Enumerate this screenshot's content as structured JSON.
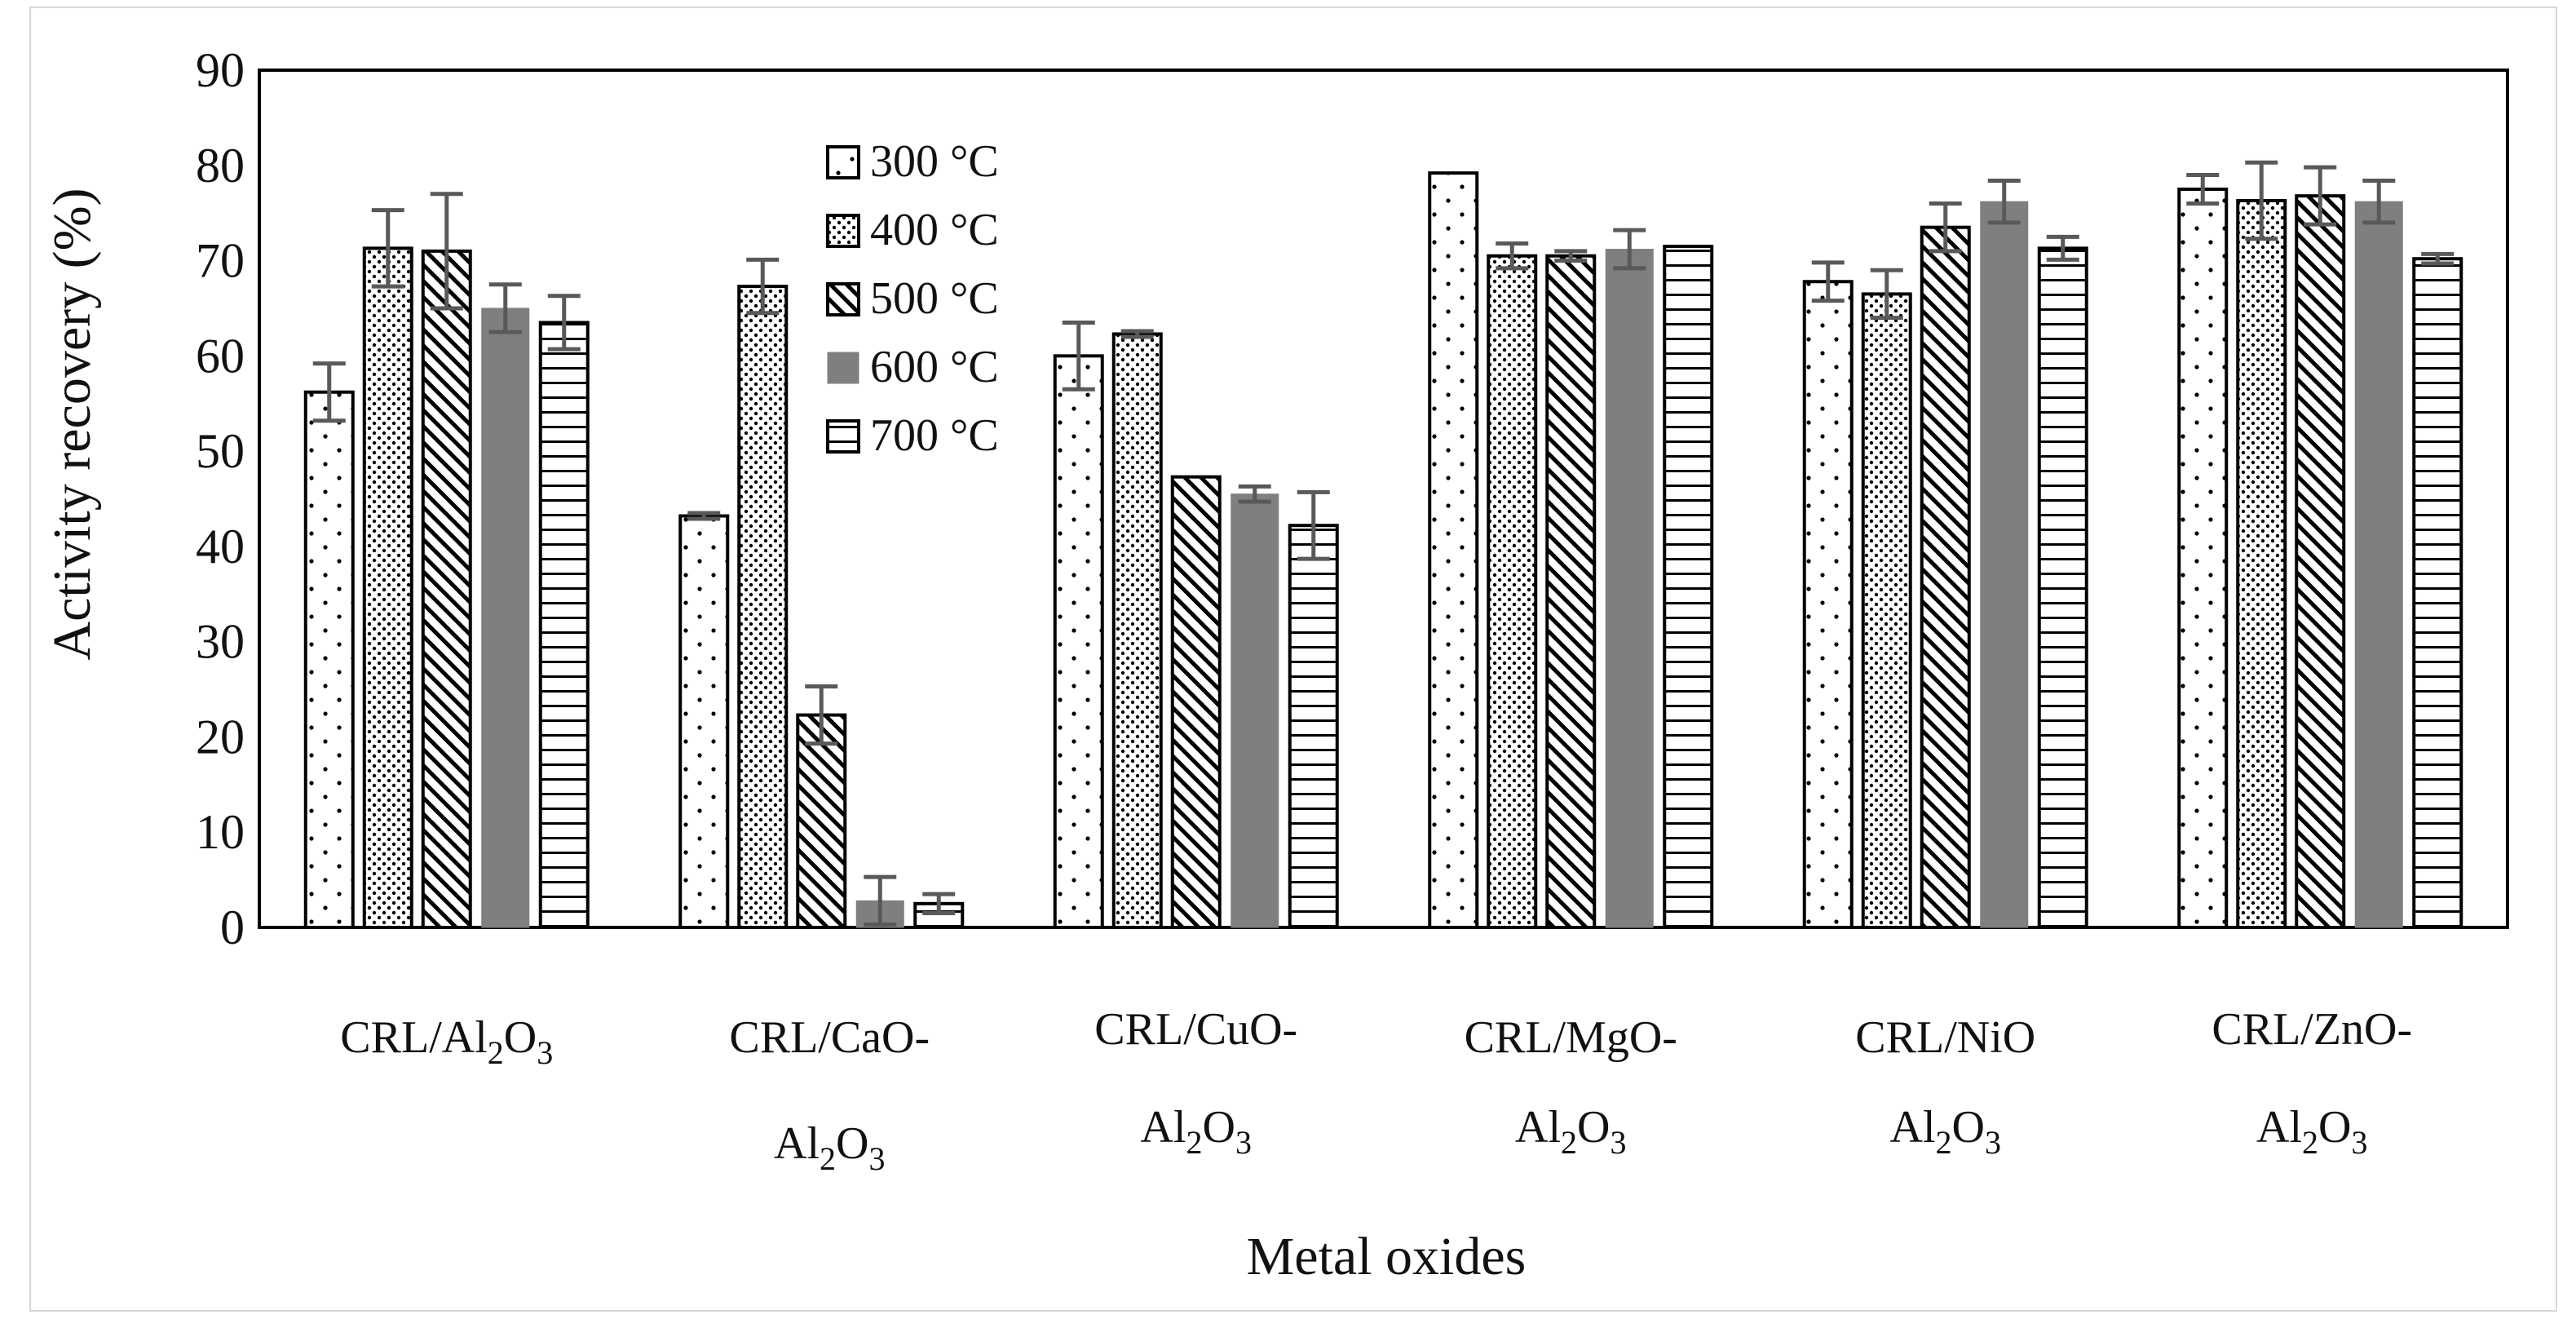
{
  "chart_data": {
    "type": "bar",
    "title": "",
    "xlabel": "Metal oxides",
    "ylabel": "Activity recovery (%)",
    "ylim": [
      0,
      90
    ],
    "yticks": [
      "0",
      "10",
      "20",
      "30",
      "40",
      "50",
      "60",
      "70",
      "80",
      "90"
    ],
    "grid": false,
    "legend_position": "top-left inside plot",
    "categories": [
      {
        "line1": "CRL/Al",
        "line1_sub1": "2",
        "line1_mid": "O",
        "line1_sub2": "3",
        "line2": ""
      },
      {
        "line1": "CRL/CaO-",
        "line2": "Al",
        "line2_sub1": "2",
        "line2_mid": "O",
        "line2_sub2": "3"
      },
      {
        "line1": "CRL/CuO-",
        "line2": "Al",
        "line2_sub1": "2",
        "line2_mid": "O",
        "line2_sub2": "3"
      },
      {
        "line1": "CRL/MgO-",
        "line2": "Al",
        "line2_sub1": "2",
        "line2_mid": "O",
        "line2_sub2": "3"
      },
      {
        "line1": "CRL/NiO",
        "line2": "Al",
        "line2_sub1": "2",
        "line2_mid": "O",
        "line2_sub2": "3"
      },
      {
        "line1": "CRL/ZnO-",
        "line2": "Al",
        "line2_sub1": "2",
        "line2_mid": "O",
        "line2_sub2": "3"
      }
    ],
    "series": [
      {
        "name": "300 °C",
        "pattern": "dots",
        "values": [
          56.2,
          43.2,
          60.0,
          79.2,
          67.8,
          77.5
        ],
        "errors": [
          3.0,
          0.3,
          3.5,
          0,
          2.0,
          1.5
        ]
      },
      {
        "name": "400 °C",
        "pattern": "dense-dots",
        "values": [
          71.3,
          67.3,
          62.3,
          70.5,
          66.5,
          76.3
        ],
        "errors": [
          4.0,
          2.8,
          0.3,
          1.3,
          2.5,
          4.0
        ]
      },
      {
        "name": "500 °C",
        "pattern": "diagonal",
        "values": [
          71.0,
          22.3,
          47.3,
          70.5,
          73.5,
          76.8
        ],
        "errors": [
          6.0,
          3.0,
          0,
          0.5,
          2.5,
          3.0
        ]
      },
      {
        "name": "600 °C",
        "pattern": "solid-gray",
        "values": [
          65.0,
          2.8,
          45.5,
          71.2,
          76.2,
          76.2
        ],
        "errors": [
          2.5,
          2.5,
          0.8,
          2.0,
          2.2,
          2.2
        ]
      },
      {
        "name": "700 °C",
        "pattern": "horizontal",
        "values": [
          63.5,
          2.5,
          42.2,
          71.5,
          71.3,
          70.2
        ],
        "errors": [
          2.8,
          1.0,
          3.5,
          0,
          1.2,
          0.5
        ]
      }
    ],
    "colors": {
      "bar_stroke": "#000000",
      "solid_fill": "#7f7f7f",
      "error_bar": "#595959",
      "frame": "#d6d6d6"
    }
  }
}
